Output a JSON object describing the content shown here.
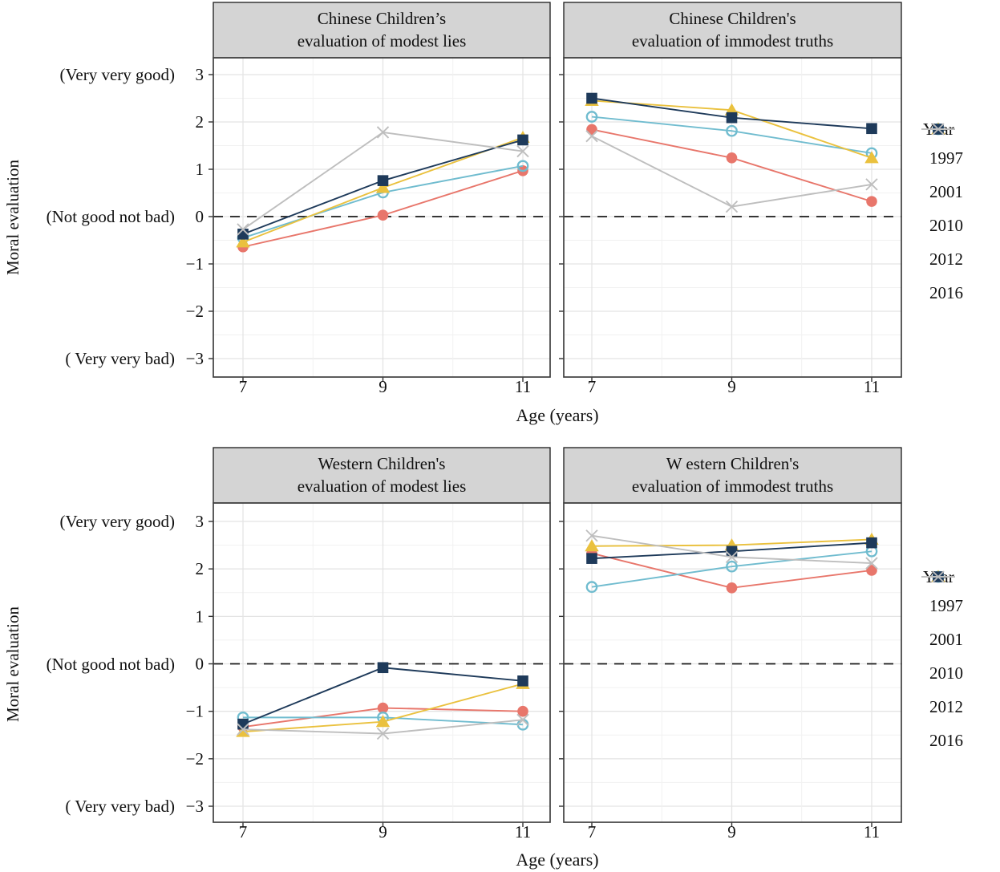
{
  "figure_name": "Children's moral evaluation of modest lies and immodest truths by age and year",
  "axes": {
    "x": {
      "label": "Age (years)",
      "ticks": [
        "7",
        "9",
        "11"
      ],
      "tick_values": [
        7,
        9,
        11
      ]
    },
    "y": {
      "label": "Moral evaluation",
      "ticks": [
        "3",
        "2",
        "1",
        "0",
        "−1",
        "−2",
        "−3"
      ],
      "tick_values": [
        3,
        2,
        1,
        0,
        -1,
        -2,
        -3
      ],
      "ylim": [
        -3,
        3
      ],
      "annotations": [
        {
          "value": 3,
          "label": "(Very very good)"
        },
        {
          "value": 0,
          "label": "(Not good not bad)"
        },
        {
          "value": -3,
          "label": "( Very very bad)"
        }
      ]
    },
    "reference_line_y": 0,
    "grid": "on"
  },
  "legend": {
    "title": "Year",
    "position": "right",
    "entries": [
      {
        "label": "1997",
        "color": "#E8766B",
        "marker": "circle-filled"
      },
      {
        "label": "2001",
        "color": "#70BCCF",
        "marker": "circle-open"
      },
      {
        "label": "2010",
        "color": "#EAC13E",
        "marker": "triangle-filled"
      },
      {
        "label": "2012",
        "color": "#1E3A5A",
        "marker": "square-filled"
      },
      {
        "label": "2016",
        "color": "#BEBEBE",
        "marker": "x"
      }
    ]
  },
  "style": {
    "strip_bg": "#D4D4D4",
    "strip_border": "#1a1a1a",
    "panel_border": "#404040",
    "grid_major": "#E4E4E4",
    "grid_minor": "#F1F1F1",
    "dashed_line": "#1a1a1a"
  },
  "chart_data": [
    {
      "id": "chinese-modest-lies",
      "type": "line",
      "title_lines": [
        "Chinese Children’s",
        "evaluation of modest lies"
      ],
      "x": [
        7,
        9,
        11
      ],
      "ylim": [
        -3,
        3
      ],
      "series": [
        {
          "name": "1997",
          "values": [
            -0.64,
            0.03,
            0.97
          ]
        },
        {
          "name": "2001",
          "values": [
            -0.45,
            0.51,
            1.07
          ]
        },
        {
          "name": "2010",
          "values": [
            -0.54,
            0.61,
            1.67
          ]
        },
        {
          "name": "2012",
          "values": [
            -0.37,
            0.76,
            1.62
          ]
        },
        {
          "name": "2016",
          "values": [
            -0.27,
            1.78,
            1.38
          ]
        }
      ]
    },
    {
      "id": "chinese-immodest-truths",
      "type": "line",
      "title_lines": [
        "Chinese Children's",
        "evaluation of immodest truths"
      ],
      "x": [
        7,
        9,
        11
      ],
      "ylim": [
        -3,
        3
      ],
      "series": [
        {
          "name": "1997",
          "values": [
            1.84,
            1.24,
            0.32
          ]
        },
        {
          "name": "2001",
          "values": [
            2.11,
            1.81,
            1.34
          ]
        },
        {
          "name": "2010",
          "values": [
            2.45,
            2.25,
            1.24
          ]
        },
        {
          "name": "2012",
          "values": [
            2.5,
            2.09,
            1.86
          ]
        },
        {
          "name": "2016",
          "values": [
            1.7,
            0.21,
            0.68
          ]
        }
      ]
    },
    {
      "id": "western-modest-lies",
      "type": "line",
      "title_lines": [
        "Western Children's",
        "evaluation of modest lies"
      ],
      "x": [
        7,
        9,
        11
      ],
      "ylim": [
        -3,
        3
      ],
      "series": [
        {
          "name": "1997",
          "values": [
            -1.33,
            -0.93,
            -1.0
          ]
        },
        {
          "name": "2001",
          "values": [
            -1.13,
            -1.13,
            -1.28
          ]
        },
        {
          "name": "2010",
          "values": [
            -1.43,
            -1.22,
            -0.42
          ]
        },
        {
          "name": "2012",
          "values": [
            -1.27,
            -0.08,
            -0.36
          ]
        },
        {
          "name": "2016",
          "values": [
            -1.38,
            -1.47,
            -1.18
          ]
        }
      ]
    },
    {
      "id": "western-immodest-truths",
      "type": "line",
      "title_lines": [
        "W estern Children's",
        "evaluation of immodest truths"
      ],
      "x": [
        7,
        9,
        11
      ],
      "ylim": [
        -3,
        3
      ],
      "series": [
        {
          "name": "1997",
          "values": [
            2.33,
            1.6,
            1.97
          ]
        },
        {
          "name": "2001",
          "values": [
            1.62,
            2.05,
            2.37
          ]
        },
        {
          "name": "2010",
          "values": [
            2.48,
            2.5,
            2.62
          ]
        },
        {
          "name": "2012",
          "values": [
            2.22,
            2.37,
            2.55
          ]
        },
        {
          "name": "2016",
          "values": [
            2.7,
            2.25,
            2.12
          ]
        }
      ]
    }
  ]
}
